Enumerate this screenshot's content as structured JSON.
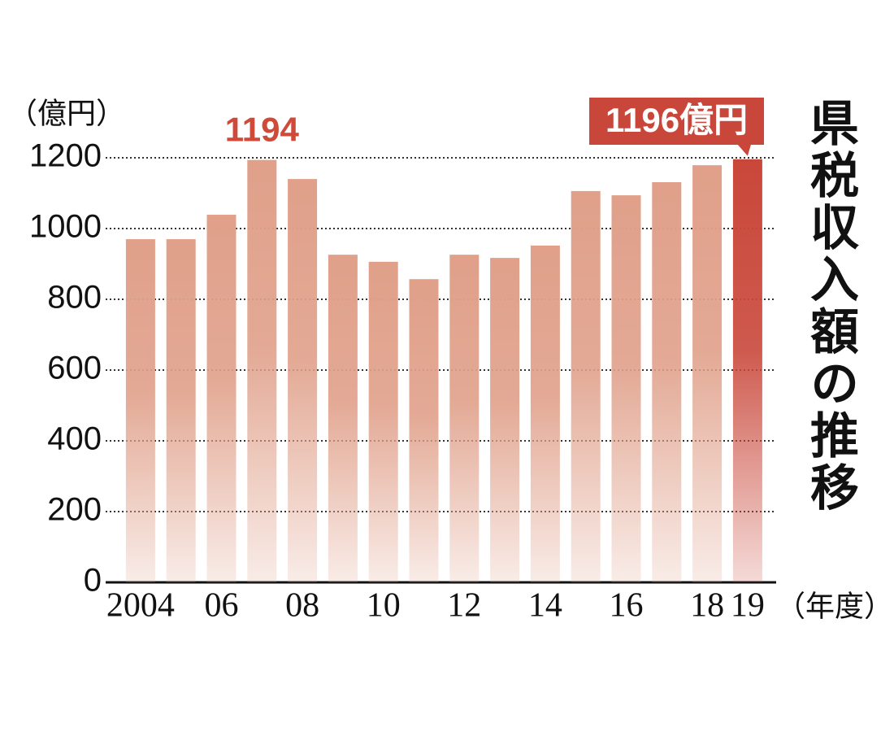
{
  "chart_data": {
    "type": "bar",
    "title": "県税収入額の推移",
    "y_unit": "（億円）",
    "x_unit": "（年度）",
    "categories": [
      "2004",
      null,
      "06",
      null,
      "08",
      null,
      "10",
      null,
      "12",
      null,
      "14",
      null,
      "16",
      null,
      "18",
      "19"
    ],
    "values": [
      970,
      970,
      1039,
      1194,
      1140,
      926,
      906,
      857,
      926,
      917,
      952,
      1106,
      1094,
      1131,
      1179,
      1196
    ],
    "value_labels": [
      null,
      null,
      null,
      "1194",
      null,
      null,
      null,
      null,
      null,
      null,
      null,
      null,
      null,
      null,
      null,
      "1196億円"
    ],
    "colors": [
      "#e0a08a",
      "#e0a08a",
      "#e0a08a",
      "#e0a08a",
      "#e0a08a",
      "#e0a08a",
      "#e0a08a",
      "#e0a08a",
      "#e0a08a",
      "#e0a08a",
      "#e0a08a",
      "#e0a08a",
      "#e0a08a",
      "#e0a08a",
      "#e0a08a",
      "#c9473a"
    ],
    "label_color": "#d04a3a",
    "ylim": [
      0,
      1200
    ],
    "yticks": [
      0,
      200,
      400,
      600,
      800,
      1000,
      1200
    ],
    "grid": true
  }
}
